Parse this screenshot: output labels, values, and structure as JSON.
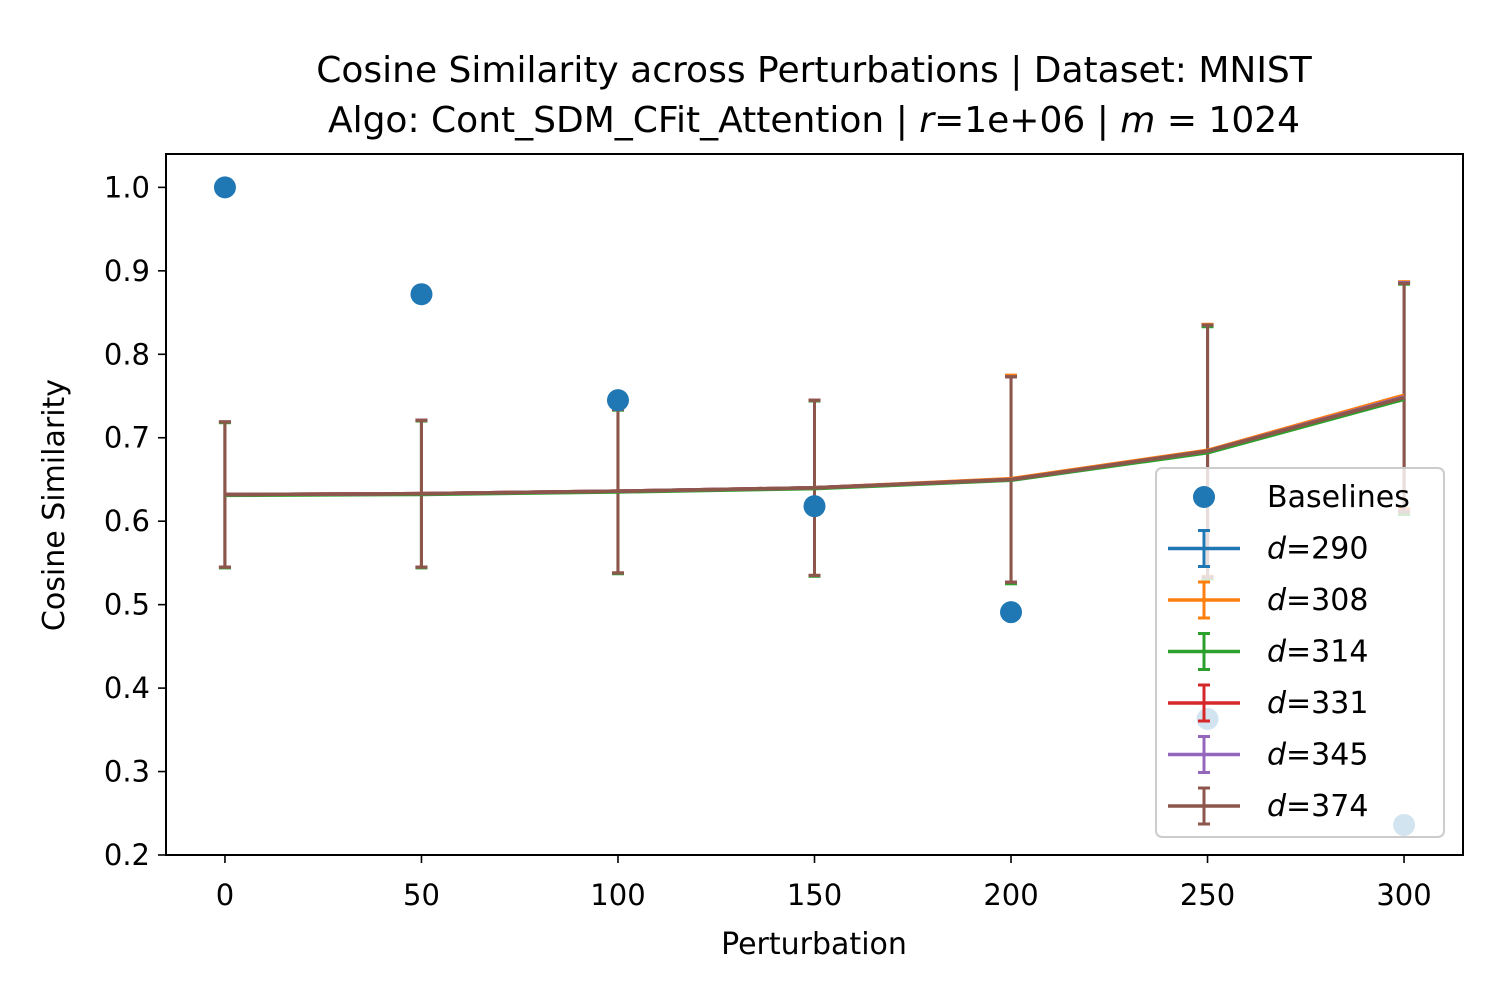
{
  "chart_data": {
    "type": "line",
    "title_line1": "Cosine Similarity across Perturbations | Dataset: MNIST",
    "title_line2_prefix": "Algo: Cont_SDM_CFit_Attention | ",
    "title_line2_r_symbol": "r",
    "title_line2_r_value": "=1e+06 | ",
    "title_line2_m_symbol": "m",
    "title_line2_m_value": " = 1024",
    "xlabel": "Perturbation",
    "ylabel": "Cosine Similarity",
    "x": [
      0,
      50,
      100,
      150,
      200,
      250,
      300
    ],
    "xlim": [
      -15,
      315
    ],
    "ylim": [
      0.2,
      1.04
    ],
    "x_ticks": [
      0,
      50,
      100,
      150,
      200,
      250,
      300
    ],
    "y_ticks": [
      0.2,
      0.3,
      0.4,
      0.5,
      0.6,
      0.7,
      0.8,
      0.9,
      1.0
    ],
    "x_tick_labels": [
      "0",
      "50",
      "100",
      "150",
      "200",
      "250",
      "300"
    ],
    "y_tick_labels": [
      "0.2",
      "0.3",
      "0.4",
      "0.5",
      "0.6",
      "0.7",
      "0.8",
      "0.9",
      "1.0"
    ],
    "grid": false,
    "legend_position": "lower-right",
    "baselines": {
      "name": "Baselines",
      "color": "#1f77b4",
      "values": [
        1.0,
        0.872,
        0.745,
        0.618,
        0.491,
        0.363,
        0.236
      ]
    },
    "series": [
      {
        "label_symbol": "d",
        "label_value": "=290",
        "color": "#1f77b4",
        "values": [
          0.632,
          0.633,
          0.636,
          0.64,
          0.65,
          0.684,
          0.749
        ],
        "errors": [
          0.087,
          0.088,
          0.098,
          0.105,
          0.123,
          0.151,
          0.137
        ]
      },
      {
        "label_symbol": "d",
        "label_value": "=308",
        "color": "#ff7f0e",
        "values": [
          0.632,
          0.633,
          0.636,
          0.64,
          0.651,
          0.685,
          0.751
        ],
        "errors": [
          0.087,
          0.088,
          0.098,
          0.105,
          0.124,
          0.151,
          0.136
        ]
      },
      {
        "label_symbol": "d",
        "label_value": "=314",
        "color": "#2ca02c",
        "values": [
          0.631,
          0.632,
          0.635,
          0.639,
          0.649,
          0.682,
          0.746
        ],
        "errors": [
          0.087,
          0.088,
          0.098,
          0.105,
          0.124,
          0.151,
          0.138
        ]
      },
      {
        "label_symbol": "d",
        "label_value": "=331",
        "color": "#d62728",
        "values": [
          0.632,
          0.633,
          0.636,
          0.64,
          0.65,
          0.684,
          0.749
        ],
        "errors": [
          0.087,
          0.088,
          0.098,
          0.105,
          0.123,
          0.151,
          0.137
        ]
      },
      {
        "label_symbol": "d",
        "label_value": "=345",
        "color": "#9467bd",
        "values": [
          0.632,
          0.633,
          0.636,
          0.64,
          0.65,
          0.684,
          0.749
        ],
        "errors": [
          0.087,
          0.088,
          0.098,
          0.105,
          0.123,
          0.151,
          0.137
        ]
      },
      {
        "label_symbol": "d",
        "label_value": "=374",
        "color": "#8c564b",
        "values": [
          0.632,
          0.633,
          0.636,
          0.64,
          0.65,
          0.684,
          0.748
        ],
        "errors": [
          0.087,
          0.088,
          0.098,
          0.105,
          0.123,
          0.151,
          0.137
        ]
      }
    ]
  }
}
